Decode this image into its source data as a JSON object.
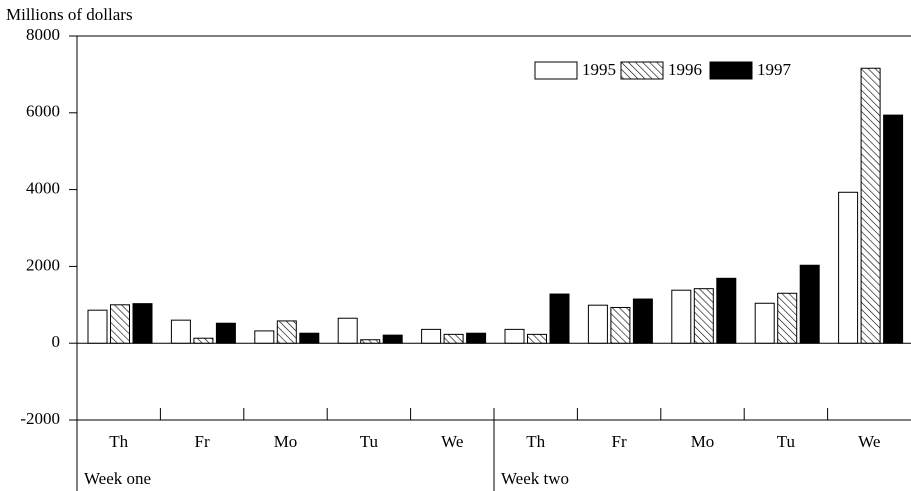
{
  "chart_data": {
    "type": "bar",
    "y_label": "Millions of dollars",
    "categories": [
      "Th",
      "Fr",
      "Mo",
      "Tu",
      "We",
      "Th",
      "Fr",
      "Mo",
      "Tu",
      "We"
    ],
    "groups": [
      "Week one",
      "Week two"
    ],
    "series": [
      {
        "name": "1995",
        "color": "#ffffff",
        "values": [
          860,
          600,
          320,
          650,
          360,
          360,
          990,
          1380,
          1040,
          3930
        ]
      },
      {
        "name": "1996",
        "color": "#ffffff",
        "pattern": "hatch",
        "values": [
          1000,
          130,
          580,
          90,
          230,
          230,
          930,
          1420,
          1300,
          7160
        ]
      },
      {
        "name": "1997",
        "color": "#000000",
        "values": [
          1030,
          520,
          260,
          210,
          260,
          1280,
          1150,
          1690,
          2030,
          5940
        ]
      }
    ],
    "ylim": [
      -2000,
      8000
    ],
    "yticks": [
      -2000,
      0,
      2000,
      4000,
      6000,
      8000
    ],
    "legend": "upper right"
  }
}
